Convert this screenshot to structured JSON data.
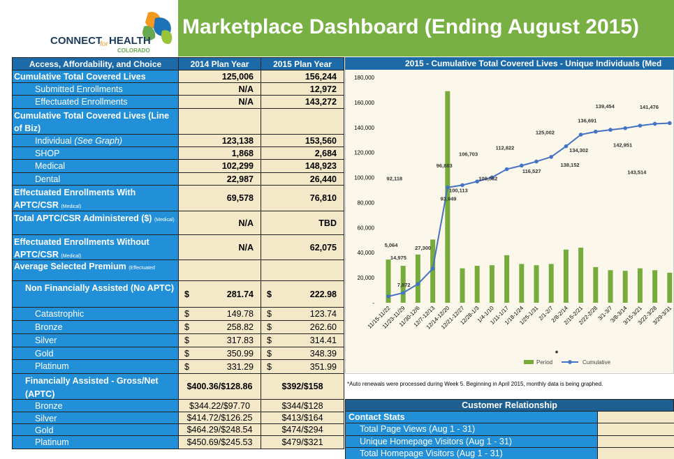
{
  "header": {
    "logo": {
      "connect": "CONNECT",
      "for": "for",
      "health": "HEALTH",
      "colorado": "COLORADO"
    },
    "title": "Marketplace Dashboard (Ending August 2015)"
  },
  "table": {
    "headers": [
      "Access, Affordability, and Choice",
      "2014 Plan Year",
      "2015 Plan Year"
    ],
    "rows": [
      {
        "label": "Cumulative Total Covered Lives",
        "values": [
          "125,006",
          "156,244"
        ]
      },
      {
        "label": "Submitted Enrollments",
        "values": [
          "N/A",
          "12,972"
        ]
      },
      {
        "label": "Effectuated Enrollments",
        "values": [
          "N/A",
          "143,272"
        ]
      },
      {
        "label": "Cumulative Total Covered Lives (Line of Biz)"
      },
      {
        "label": "Individual",
        "italic": "(See Graph)",
        "values": [
          "123,138",
          "153,560"
        ]
      },
      {
        "label": "SHOP",
        "values": [
          "1,868",
          "2,684"
        ]
      },
      {
        "label": "Medical",
        "values": [
          "102,299",
          "148,923"
        ]
      },
      {
        "label": "Dental",
        "values": [
          "22,987",
          "26,440"
        ]
      },
      {
        "label": "Effectuated Enrollments With APTC/CSR",
        "small": "(Medical)",
        "values": [
          "69,578",
          "76,810"
        ]
      },
      {
        "label": "Total APTC/CSR Administered ($)",
        "small": "(Medical)",
        "values": [
          "N/A",
          "TBD"
        ]
      },
      {
        "label": "Effectuated Enrollments Without APTC/CSR",
        "small": "(Medical)",
        "values": [
          "N/A",
          "62,075"
        ]
      },
      {
        "label": "Average Selected Premium",
        "small": "(Effectuated Enrollments)"
      },
      {
        "label": "Non Financially Assisted (No APTC)",
        "values": [
          [
            "$",
            "281.74"
          ],
          [
            "$",
            "222.98"
          ]
        ]
      },
      {
        "label": "Catastrophic",
        "values": [
          [
            "$",
            "149.78"
          ],
          [
            "$",
            "123.74"
          ]
        ]
      },
      {
        "label": "Bronze",
        "values": [
          [
            "$",
            "258.82"
          ],
          [
            "$",
            "262.60"
          ]
        ]
      },
      {
        "label": "Silver",
        "values": [
          [
            "$",
            "317.83"
          ],
          [
            "$",
            "314.41"
          ]
        ]
      },
      {
        "label": "Gold",
        "values": [
          [
            "$",
            "350.99"
          ],
          [
            "$",
            "348.39"
          ]
        ]
      },
      {
        "label": "Platinum",
        "values": [
          [
            "$",
            "331.29"
          ],
          [
            "$",
            "351.99"
          ]
        ]
      },
      {
        "label": "Financially Assisted - Gross/Net (APTC)",
        "values": [
          "$400.36/$128.86",
          "$392/$158"
        ]
      },
      {
        "label": "Bronze",
        "values": [
          "$344.22/$97.70",
          "$344/$128"
        ]
      },
      {
        "label": "Silver",
        "values": [
          "$414.72/$126.25",
          "$413/$164"
        ]
      },
      {
        "label": "Gold",
        "values": [
          "$464.29/$248.54",
          "$474/$294"
        ]
      },
      {
        "label": "Platinum",
        "values": [
          "$450.69/$245.53",
          "$479/$321"
        ]
      }
    ]
  },
  "chart_data": {
    "type": "combo",
    "title": "2015 - Cumulative Total Covered Lives - Unique Individuals (Med",
    "categories": [
      "11/15-11/22",
      "11/23-11/29",
      "11/30-12/6",
      "12/7-12/13",
      "12/14-12/20",
      "12/21-12/27",
      "12/28-1/3",
      "1/4-1/10",
      "1/11-1/17",
      "1/18-1/24",
      "1/25-1/31",
      "2/1-2/7",
      "2/8-2/14",
      "2/15-2/21",
      "2/22-2/28",
      "3/1-3/7",
      "3/8-3/14",
      "3/15-3/21",
      "3/22-3/28",
      "3/29-3/31"
    ],
    "series": [
      {
        "name": "Period",
        "type": "bar",
        "color": "#77ac3c",
        "values": [
          34500,
          29500,
          38500,
          50500,
          169000,
          27500,
          29500,
          30000,
          38000,
          31000,
          30000,
          31000,
          42500,
          44000,
          28500,
          26000,
          25500,
          27500,
          26000,
          24000
        ]
      },
      {
        "name": "Cumulative",
        "type": "line",
        "color": "#4472c4",
        "values": [
          5064,
          7872,
          14975,
          27300,
          92118,
          93949,
          96883,
          100113,
          106703,
          109582,
          112822,
          116527,
          125002,
          134302,
          136691,
          138152,
          139454,
          141476,
          142951,
          143514
        ],
        "value_labels": [
          "5,064",
          "7,872",
          "14,975",
          "27,300",
          "92,118",
          "93,949",
          "96,883",
          "100,113",
          "106,703",
          "109,582",
          "112,822",
          "116,527",
          "125,002",
          "134,302",
          "136,691",
          "138,152",
          "139,454",
          "141,476",
          "142,951",
          "143,514"
        ]
      }
    ],
    "ylim": [
      0,
      180000
    ],
    "yticks": [
      {
        "value": 0,
        "label": "-"
      },
      {
        "value": 20000,
        "label": "20,000"
      },
      {
        "value": 40000,
        "label": "40,000"
      },
      {
        "value": 60000,
        "label": "60,000"
      },
      {
        "value": 80000,
        "label": "80,000"
      },
      {
        "value": 100000,
        "label": "100,000"
      },
      {
        "value": 120000,
        "label": "120,000"
      },
      {
        "value": 140000,
        "label": "140,000"
      },
      {
        "value": 160000,
        "label": "160,000"
      },
      {
        "value": 180000,
        "label": "180,000"
      }
    ],
    "grid": false,
    "legend": "bottom",
    "annotation": "*"
  },
  "note": "*Auto renewals were processed during Week 5.  Beginning in April 2015, monthly data is being graphed.",
  "contact": {
    "title": "Customer Relationship",
    "section": "Contact Stats",
    "rows": [
      "Total Page Views (Aug 1 - 31)",
      "Unique Homepage Visitors (Aug 1 - 31)",
      "Total Homepage Visitors (Aug 1 - 31)"
    ]
  }
}
